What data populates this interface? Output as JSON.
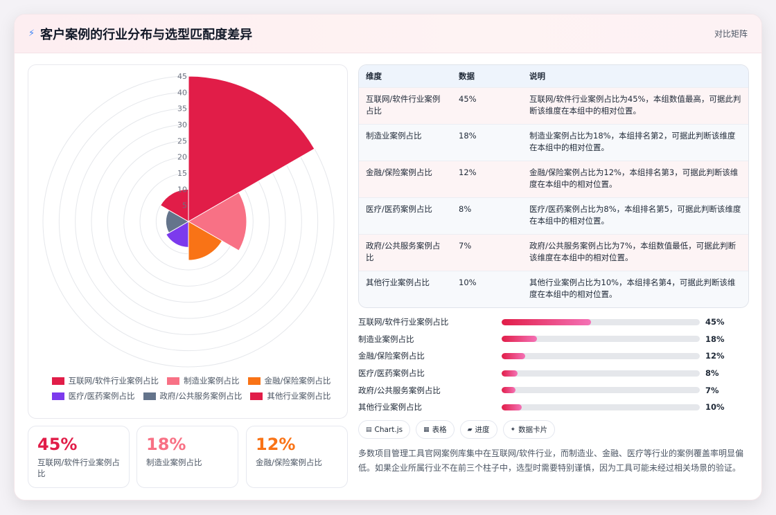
{
  "header": {
    "title": "客户案例的行业分布与选型匹配度差异",
    "tag": "对比矩阵",
    "icon": "lightning-icon"
  },
  "chart_data": {
    "type": "polarArea",
    "categories": [
      "互联网/软件行业案例占比",
      "制造业案例占比",
      "金融/保险案例占比",
      "医疗/医药案例占比",
      "政府/公共服务案例占比",
      "其他行业案例占比"
    ],
    "values": [
      45,
      18,
      12,
      8,
      7,
      10
    ],
    "colors": [
      "#e11d48",
      "#f87185",
      "#f97316",
      "#7c3aed",
      "#64748b",
      "#e11d48"
    ],
    "rlim": [
      0,
      45
    ],
    "ticks": [
      "5",
      "10",
      "15",
      "20",
      "25",
      "30",
      "35",
      "40",
      "45"
    ],
    "legend_position": "bottom"
  },
  "kpis": [
    {
      "value": "45%",
      "label": "互联网/软件行业案例占比",
      "color": "#e11d48"
    },
    {
      "value": "18%",
      "label": "制造业案例占比",
      "color": "#f87185"
    },
    {
      "value": "12%",
      "label": "金融/保险案例占比",
      "color": "#f97316"
    }
  ],
  "table": {
    "headers": [
      "维度",
      "数据",
      "说明"
    ],
    "rows": [
      {
        "dim": "互联网/软件行业案例占比",
        "val": "45%",
        "desc": "互联网/软件行业案例占比为45%，本组数值最高，可据此判断该维度在本组中的相对位置。"
      },
      {
        "dim": "制造业案例占比",
        "val": "18%",
        "desc": "制造业案例占比为18%，本组排名第2，可据此判断该维度在本组中的相对位置。"
      },
      {
        "dim": "金融/保险案例占比",
        "val": "12%",
        "desc": "金融/保险案例占比为12%，本组排名第3，可据此判断该维度在本组中的相对位置。"
      },
      {
        "dim": "医疗/医药案例占比",
        "val": "8%",
        "desc": "医疗/医药案例占比为8%，本组排名第5，可据此判断该维度在本组中的相对位置。"
      },
      {
        "dim": "政府/公共服务案例占比",
        "val": "7%",
        "desc": "政府/公共服务案例占比为7%，本组数值最低，可据此判断该维度在本组中的相对位置。"
      },
      {
        "dim": "其他行业案例占比",
        "val": "10%",
        "desc": "其他行业案例占比为10%，本组排名第4，可据此判断该维度在本组中的相对位置。"
      }
    ]
  },
  "progress": [
    {
      "label": "互联网/软件行业案例占比",
      "value": "45%",
      "fraction": 0.45
    },
    {
      "label": "制造业案例占比",
      "value": "18%",
      "fraction": 0.18
    },
    {
      "label": "金融/保险案例占比",
      "value": "12%",
      "fraction": 0.12
    },
    {
      "label": "医疗/医药案例占比",
      "value": "8%",
      "fraction": 0.08
    },
    {
      "label": "政府/公共服务案例占比",
      "value": "7%",
      "fraction": 0.07
    },
    {
      "label": "其他行业案例占比",
      "value": "10%",
      "fraction": 0.1
    }
  ],
  "chips": [
    {
      "icon": "▤",
      "label": "Chart.js"
    },
    {
      "icon": "▦",
      "label": "表格"
    },
    {
      "icon": "▰",
      "label": "进度"
    },
    {
      "icon": "✦",
      "label": "数据卡片"
    }
  ],
  "summary": "多数项目管理工具官网案例库集中在互联网/软件行业，而制造业、金融、医疗等行业的案例覆盖率明显偏低。如果企业所属行业不在前三个柱子中，选型时需要特别谨慎，因为工具可能未经过相关场景的验证。"
}
